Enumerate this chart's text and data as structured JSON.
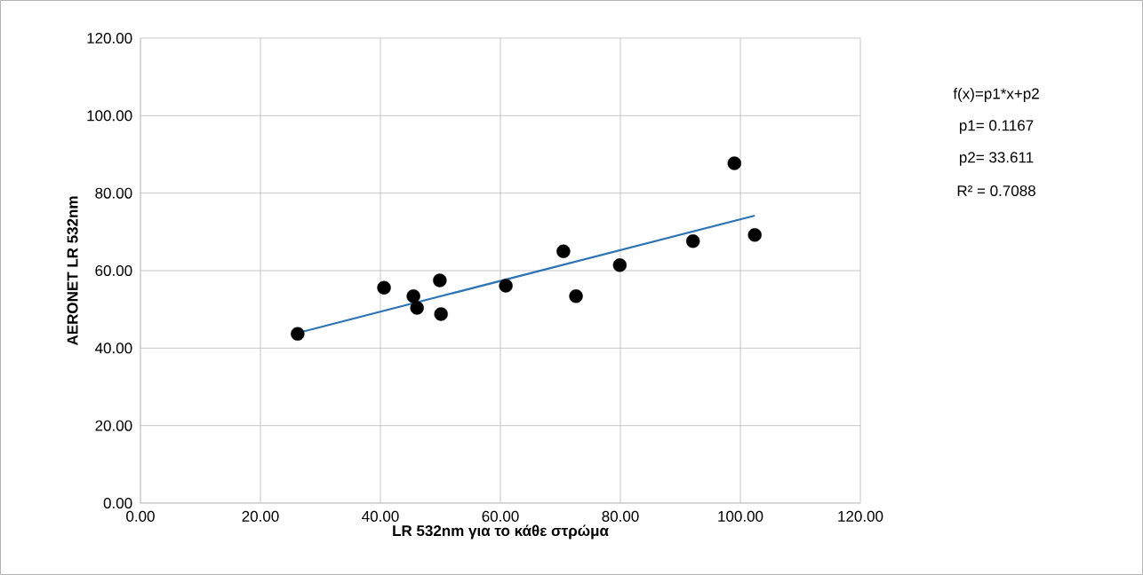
{
  "chart_data": {
    "type": "scatter",
    "xlabel": "LR 532nm για το κάθε στρώμα",
    "ylabel": "AERONET LR 532nm",
    "annotations": [
      "f(x)=p1*x+p2",
      "p1= 0.1167",
      "p2= 33.611",
      "R² = 0.7088"
    ],
    "series": [
      {
        "color": "#000000",
        "marker": "circle",
        "x": [
          26.2,
          40.6,
          45.5,
          46.1,
          49.9,
          50.1,
          60.9,
          70.5,
          72.6,
          79.9,
          92.1,
          99.0,
          102.4
        ],
        "values": [
          43.7,
          55.6,
          53.4,
          50.4,
          57.5,
          48.8,
          56.1,
          65.0,
          53.4,
          61.4,
          67.6,
          87.7,
          69.2
        ]
      },
      {
        "type": "line",
        "color": "#2e75b6",
        "marker": "none",
        "x": [
          26.2,
          102.4
        ],
        "values": [
          43.9,
          74.2
        ]
      }
    ],
    "xlim": [
      0,
      120
    ],
    "ylim": [
      0,
      120
    ],
    "xticks": [
      {
        "value": 0,
        "label": "0.00"
      },
      {
        "value": 20,
        "label": "20.00"
      },
      {
        "value": 40,
        "label": "40.00"
      },
      {
        "value": 60,
        "label": "60.00"
      },
      {
        "value": 80,
        "label": "80.00"
      },
      {
        "value": 100,
        "label": "100.00"
      },
      {
        "value": 120,
        "label": "120.00"
      }
    ],
    "yticks": [
      {
        "value": 0,
        "label": "0.00"
      },
      {
        "value": 20,
        "label": "20.00"
      },
      {
        "value": 40,
        "label": "40.00"
      },
      {
        "value": 60,
        "label": "60.00"
      },
      {
        "value": 80,
        "label": "80.00"
      },
      {
        "value": 100,
        "label": "100.00"
      },
      {
        "value": 120,
        "label": "120.00"
      }
    ],
    "grid": true
  }
}
